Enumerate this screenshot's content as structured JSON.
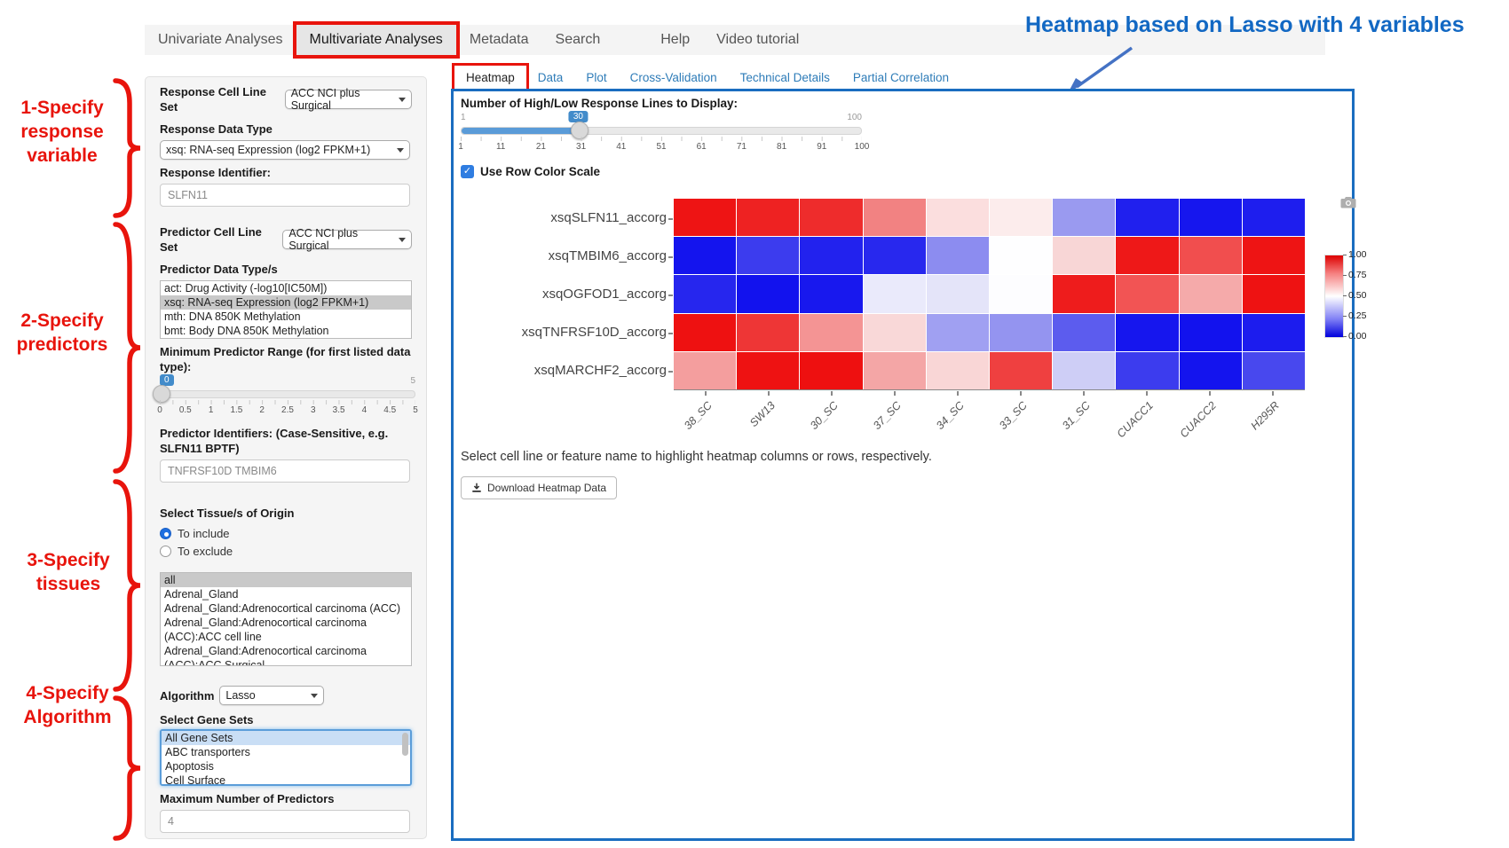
{
  "annotations": {
    "step1": "1-Specify response variable",
    "step2": "2-Specify predictors",
    "step3": "3-Specify tissues",
    "step4": "4-Specify Algorithm",
    "heatmap_note": "Heatmap based on Lasso with 4 variables",
    "colors": {
      "annotation_red": "#e8140c",
      "annotation_blue": "#1268c3",
      "arrow_blue": "#4472c4",
      "panel_border_blue": "#1a6dc0",
      "accent_blue": "#428bca"
    }
  },
  "nav": {
    "items": [
      {
        "label": "Univariate Analyses",
        "active": false
      },
      {
        "label": "Multivariate Analyses",
        "active": true
      },
      {
        "label": "Metadata",
        "active": false
      },
      {
        "label": "Search",
        "active": false
      },
      {
        "label": "Help",
        "active": false
      },
      {
        "label": "Video tutorial",
        "active": false
      }
    ]
  },
  "sidebar": {
    "response_cell_line_set": {
      "label": "Response Cell Line Set",
      "value": "ACC NCI plus Surgical"
    },
    "response_data_type": {
      "label": "Response Data Type",
      "value": "xsq: RNA-seq Expression (log2 FPKM+1)"
    },
    "response_identifier": {
      "label": "Response Identifier:",
      "value": "SLFN11"
    },
    "predictor_cell_line_set": {
      "label": "Predictor Cell Line Set",
      "value": "ACC NCI plus Surgical"
    },
    "predictor_data_types": {
      "label": "Predictor Data Type/s",
      "options": [
        "act: Drug Activity (-log10[IC50M])",
        "xsq: RNA-seq Expression (log2 FPKM+1)",
        "mth: DNA 850K Methylation",
        "bmt: Body DNA 850K Methylation"
      ],
      "selected_index": 1
    },
    "min_predictor_range": {
      "label": "Minimum Predictor Range (for first listed data type):",
      "value": "0",
      "max_label": "5",
      "ticks": [
        "0",
        "0.5",
        "1",
        "1.5",
        "2",
        "2.5",
        "3",
        "3.5",
        "4",
        "4.5",
        "5"
      ]
    },
    "predictor_identifiers": {
      "label": "Predictor Identifiers: (Case-Sensitive, e.g. SLFN11 BPTF)",
      "value": "TNFRSF10D TMBIM6"
    },
    "tissue_origin": {
      "label": "Select Tissue/s of Origin",
      "radios": [
        {
          "label": "To include",
          "selected": true
        },
        {
          "label": "To exclude",
          "selected": false
        }
      ],
      "options": [
        "all",
        "Adrenal_Gland",
        "Adrenal_Gland:Adrenocortical carcinoma (ACC)",
        "Adrenal_Gland:Adrenocortical carcinoma (ACC):ACC cell line",
        "Adrenal_Gland:Adrenocortical carcinoma (ACC):ACC Surgical"
      ],
      "selected_index": 0
    },
    "algorithm": {
      "label": "Algorithm",
      "value": "Lasso"
    },
    "gene_sets": {
      "label": "Select Gene Sets",
      "options": [
        "All Gene Sets",
        "ABC transporters",
        "Apoptosis",
        "Cell Surface"
      ],
      "selected_index": 0
    },
    "max_predictors": {
      "label": "Maximum Number of Predictors",
      "value": "4"
    }
  },
  "main": {
    "tabs": [
      {
        "label": "Heatmap",
        "active": true
      },
      {
        "label": "Data",
        "active": false
      },
      {
        "label": "Plot",
        "active": false
      },
      {
        "label": "Cross-Validation",
        "active": false
      },
      {
        "label": "Technical Details",
        "active": false
      },
      {
        "label": "Partial Correlation",
        "active": false
      }
    ],
    "slider": {
      "label": "Number of High/Low Response Lines to Display:",
      "min_label": "1",
      "max_label": "100",
      "value": "30",
      "ticks": [
        "1",
        "11",
        "21",
        "31",
        "41",
        "51",
        "61",
        "71",
        "81",
        "91",
        "100"
      ]
    },
    "row_color_scale": {
      "label": "Use Row Color Scale",
      "checked": true
    },
    "hint": "Select cell line or feature name to highlight heatmap columns or rows, respectively.",
    "download_button": "Download Heatmap Data"
  },
  "chart_data": {
    "type": "heatmap",
    "rows": [
      "xsqSLFN11_accorg",
      "xsqTMBIM6_accorg",
      "xsqOGFOD1_accorg",
      "xsqTNFRSF10D_accorg",
      "xsqMARCHF2_accorg"
    ],
    "columns": [
      "38_SC",
      "SW13",
      "30_SC",
      "37_SC",
      "34_SC",
      "33_SC",
      "31_SC",
      "CUACC1",
      "CUACC2",
      "H295R"
    ],
    "values": [
      [
        0.97,
        0.95,
        0.93,
        0.75,
        0.55,
        0.52,
        0.3,
        0.05,
        0.03,
        0.04
      ],
      [
        0.03,
        0.1,
        0.05,
        0.06,
        0.28,
        0.5,
        0.58,
        0.96,
        0.85,
        0.97
      ],
      [
        0.06,
        0.02,
        0.04,
        0.47,
        0.45,
        0.5,
        0.95,
        0.83,
        0.67,
        0.97
      ],
      [
        0.98,
        0.91,
        0.72,
        0.58,
        0.3,
        0.27,
        0.18,
        0.03,
        0.02,
        0.05
      ],
      [
        0.7,
        0.97,
        0.98,
        0.68,
        0.58,
        0.88,
        0.42,
        0.1,
        0.03,
        0.13
      ]
    ],
    "cell_colors": [
      [
        "#ee1414",
        "#ee2222",
        "#ee2c2c",
        "#f28282",
        "#fbdede",
        "#fcecec",
        "#9a9af0",
        "#2020ee",
        "#1616ee",
        "#1e1eee"
      ],
      [
        "#1414ee",
        "#3c3cee",
        "#2222ee",
        "#2828ee",
        "#8c8cf0",
        "#fefeff",
        "#f8d6d6",
        "#ee1818",
        "#f14e4e",
        "#ee1414"
      ],
      [
        "#2626ee",
        "#1212ee",
        "#1818ee",
        "#eaeafb",
        "#e4e4f9",
        "#fdfdff",
        "#ee1c1c",
        "#f25454",
        "#f5aaaa",
        "#ee1212"
      ],
      [
        "#ee1111",
        "#ee3636",
        "#f49494",
        "#f9d8d8",
        "#a0a0f2",
        "#9494f0",
        "#5c5cee",
        "#1616ee",
        "#1212ee",
        "#1c1cee"
      ],
      [
        "#f49e9e",
        "#ee1212",
        "#ee1010",
        "#f4a6a6",
        "#f9d6d6",
        "#ef4040",
        "#cecef6",
        "#3c3cee",
        "#1414ee",
        "#4848ee"
      ]
    ],
    "colorbar": {
      "labels": [
        "1.00",
        "0.75",
        "0.50",
        "0.25",
        "0.00"
      ],
      "colorscale": "blue-white-red"
    },
    "xlabel": "",
    "ylabel": "",
    "title": ""
  }
}
